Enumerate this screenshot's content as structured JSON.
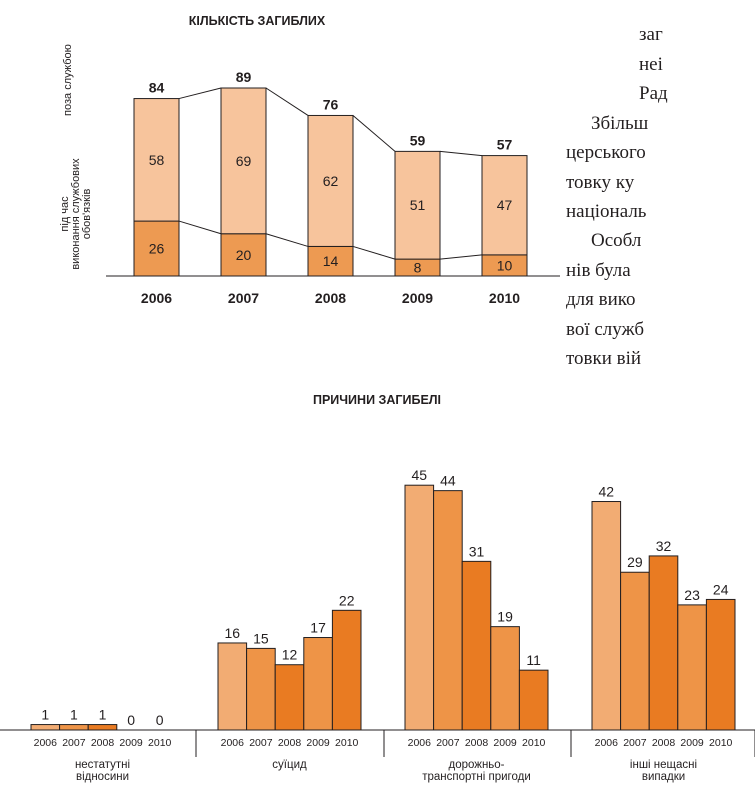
{
  "article_text": {
    "lines": [
      "заг",
      "неі",
      "Рад",
      "Збільш",
      "церського",
      "товку  ку",
      "національ",
      "Особл",
      "нів була",
      "для вико",
      "вої служб",
      "товки вій"
    ]
  },
  "chart_data": [
    {
      "type": "bar",
      "title": "КІЛЬКІСТЬ ЗАГИБЛИХ",
      "stacked": true,
      "categories": [
        "2006",
        "2007",
        "2008",
        "2009",
        "2010"
      ],
      "series": [
        {
          "name": "під час виконання службових обов'язків",
          "values": [
            26,
            20,
            14,
            8,
            10
          ],
          "color": "#ed9a52"
        },
        {
          "name": "поза службою",
          "values": [
            58,
            69,
            62,
            51,
            47
          ],
          "color": "#f7c49c"
        }
      ],
      "totals": [
        84,
        89,
        76,
        59,
        57
      ],
      "ylim": [
        0,
        89
      ]
    },
    {
      "type": "bar",
      "title": "ПРИЧИНИ ЗАГИБЕЛІ",
      "groups": [
        {
          "label": "нестатутні\nвідносини",
          "years": [
            "2006",
            "2007",
            "2008",
            "2009",
            "2010"
          ],
          "values": [
            1,
            1,
            1,
            0,
            0
          ]
        },
        {
          "label": "суїцид",
          "years": [
            "2006",
            "2007",
            "2008",
            "2009",
            "2010"
          ],
          "values": [
            16,
            15,
            12,
            17,
            22
          ]
        },
        {
          "label": "дорожньо-\nтранспортні пригоди",
          "years": [
            "2006",
            "2007",
            "2008",
            "2009",
            "2010"
          ],
          "values": [
            45,
            44,
            31,
            19,
            11
          ]
        },
        {
          "label": "інші нещасні\nвипадки",
          "years": [
            "2006",
            "2007",
            "2008",
            "2009",
            "2010"
          ],
          "values": [
            42,
            29,
            32,
            23,
            24
          ]
        }
      ],
      "bar_colors": [
        "#f2ac73",
        "#ee9447",
        "#e97b22",
        "#ee9447",
        "#e97b22"
      ],
      "ylim": [
        0,
        45
      ]
    }
  ]
}
